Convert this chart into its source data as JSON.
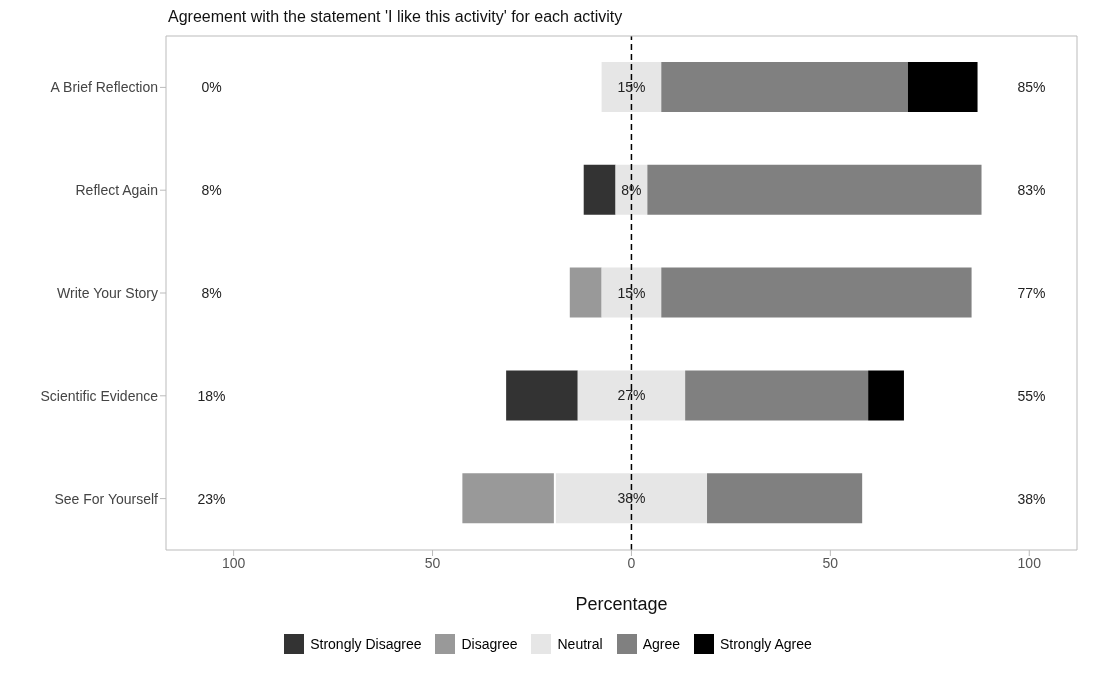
{
  "chart_data": {
    "type": "bar",
    "orientation": "horizontal",
    "title": "Agreement with the statement 'I like this activity' for each activity",
    "xlabel": "Percentage",
    "categories": [
      "A Brief Reflection",
      "Reflect Again",
      "Write Your Story",
      "Scientific Evidence",
      "See For Yourself"
    ],
    "series": [
      {
        "name": "Strongly Disagree",
        "color": "#333333",
        "values": [
          null,
          8,
          null,
          18,
          null
        ],
        "base": [
          null,
          -12,
          null,
          -31.5,
          null
        ]
      },
      {
        "name": "Disagree",
        "color": "#999999",
        "values": [
          null,
          null,
          8,
          null,
          23
        ],
        "base": [
          null,
          null,
          -15.5,
          null,
          -42.5
        ]
      },
      {
        "name": "Neutral",
        "color": "#e6e6e6",
        "values": [
          15,
          8,
          15,
          27,
          38
        ],
        "base": [
          -7.5,
          -4,
          -7.5,
          -13.5,
          -19
        ],
        "value_labels": [
          "15%",
          "8%",
          "15%",
          "27%",
          "38%"
        ]
      },
      {
        "name": "Agree",
        "color": "#808080",
        "values": [
          62,
          84,
          78,
          46,
          39
        ],
        "base": [
          7.5,
          4,
          7.5,
          13.5,
          19
        ]
      },
      {
        "name": "Strongly Agree",
        "color": "#000000",
        "values": [
          17.5,
          null,
          null,
          9,
          null
        ],
        "base": [
          69.5,
          null,
          null,
          59.5,
          null
        ]
      }
    ],
    "xlim": [
      -117,
      112
    ],
    "xticks": [
      {
        "value": -100,
        "label": "100"
      },
      {
        "value": -50,
        "label": "50"
      },
      0,
      50,
      100
    ],
    "ref_lines": [
      {
        "axis": "x",
        "value": 0,
        "color": "#000000",
        "line_style": "dashed"
      }
    ],
    "annotations": [
      "0%",
      "8%",
      "8%",
      "18%",
      "23%",
      "85%",
      "83%",
      "77%",
      "55%",
      "38%"
    ],
    "legend": "bottom"
  }
}
